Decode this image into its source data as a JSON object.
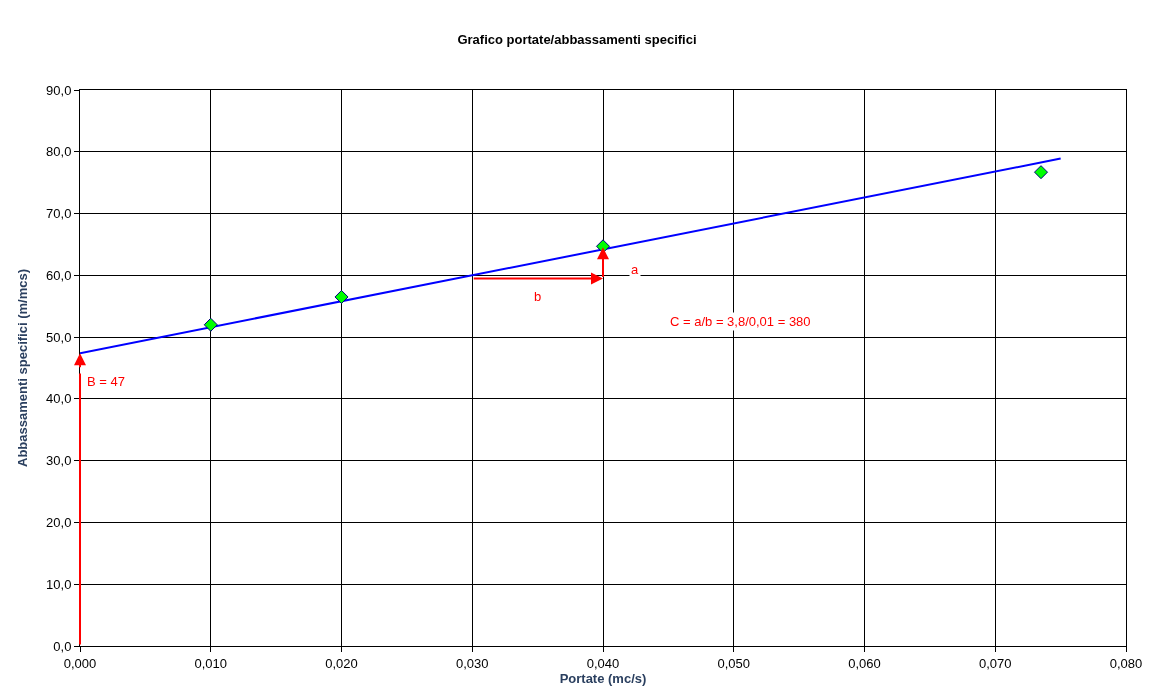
{
  "chart_data": {
    "type": "scatter",
    "title": "Grafico portate/abbassamenti specifici",
    "xlabel": "Portate (mc/s)",
    "ylabel": "Abbassamenti specifici (m/mcs)",
    "xlim": [
      0,
      0.08
    ],
    "xticks": [
      {
        "value": 0,
        "label": "0,000"
      },
      {
        "value": 0.01,
        "label": "0,010"
      },
      {
        "value": 0.02,
        "label": "0,020"
      },
      {
        "value": 0.03,
        "label": "0,030"
      },
      {
        "value": 0.04,
        "label": "0,040"
      },
      {
        "value": 0.05,
        "label": "0,050"
      },
      {
        "value": 0.06,
        "label": "0,060"
      },
      {
        "value": 0.07,
        "label": "0,070"
      },
      {
        "value": 0.08,
        "label": "0,080"
      }
    ],
    "ylim": [
      0,
      90
    ],
    "yticks": [
      {
        "value": 0,
        "label": "0,0"
      },
      {
        "value": 10,
        "label": "10,0"
      },
      {
        "value": 20,
        "label": "20,0"
      },
      {
        "value": 30,
        "label": "30,0"
      },
      {
        "value": 40,
        "label": "40,0"
      },
      {
        "value": 50,
        "label": "50,0"
      },
      {
        "value": 60,
        "label": "60,0"
      },
      {
        "value": 70,
        "label": "70,0"
      },
      {
        "value": 80,
        "label": "80,0"
      },
      {
        "value": 90,
        "label": "90,0"
      }
    ],
    "grid": true,
    "series": [
      {
        "type": "line",
        "color": "#0000ff",
        "x": [
          0,
          0.075
        ],
        "values": [
          47.4,
          78.9
        ],
        "marker": "none",
        "line_style": "solid"
      },
      {
        "color": "#00ff00",
        "x": [
          0.01,
          0.02,
          0.04,
          0.0735
        ],
        "values": [
          52.0,
          56.5,
          64.7,
          76.7
        ],
        "marker": "diamond"
      }
    ],
    "annotations": [
      {
        "text": "B = 47",
        "x": 0,
        "y": 47.4
      },
      "b",
      "a",
      "C = a/b = 3,8/0,01 = 380"
    ]
  }
}
